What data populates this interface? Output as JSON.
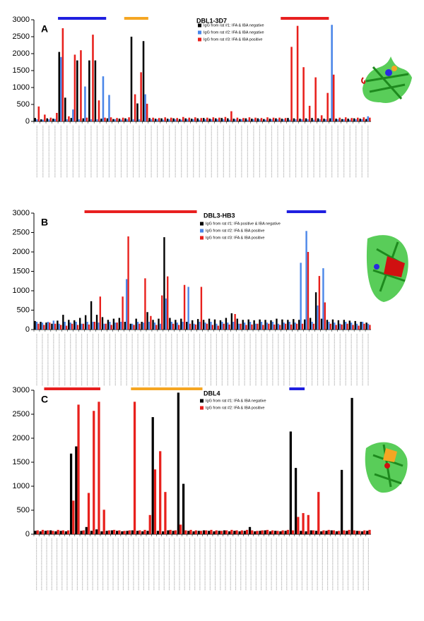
{
  "chart_data": [
    {
      "type": "bar",
      "panel": "A",
      "title": "DBL1-3D7",
      "ylim": [
        0,
        3000
      ],
      "yticks": [
        0,
        500,
        1000,
        1500,
        2000,
        2500,
        3000
      ],
      "highlights": [
        {
          "color": "#1f1fe0",
          "from": 4,
          "to": 11
        },
        {
          "color": "#f5a623",
          "from": 15,
          "to": 18
        },
        {
          "color": "#e82020",
          "from": 41,
          "to": 48
        }
      ],
      "series": [
        {
          "name": "IgG from rat #1: IFA & IBA negative",
          "color": "#000000",
          "values": [
            100,
            60,
            90,
            80,
            2050,
            700,
            100,
            1800,
            90,
            1800,
            1800,
            80,
            90,
            70,
            80,
            90,
            2500,
            530,
            2370,
            100,
            80,
            90,
            80,
            90,
            70,
            90,
            80,
            90,
            100,
            80,
            90,
            100,
            90,
            80,
            70,
            90,
            80,
            90,
            70,
            80,
            90,
            80,
            100,
            90,
            80,
            90,
            100,
            90,
            80,
            90,
            80,
            70,
            80,
            90,
            80,
            70
          ]
        },
        {
          "name": "IgG from rat #2: IFA & IBA negative",
          "color": "#4a86e8",
          "values": [
            60,
            50,
            60,
            70,
            1900,
            60,
            350,
            60,
            1030,
            60,
            60,
            1330,
            780,
            60,
            50,
            60,
            60,
            60,
            800,
            60,
            60,
            50,
            60,
            60,
            50,
            60,
            60,
            50,
            60,
            60,
            60,
            60,
            50,
            60,
            60,
            50,
            60,
            60,
            50,
            60,
            60,
            60,
            50,
            60,
            60,
            60,
            50,
            60,
            60,
            2850,
            60,
            60,
            50,
            60,
            60,
            150
          ]
        },
        {
          "name": "IgG from rat #3: IFA & IBA positive",
          "color": "#e8201c",
          "values": [
            440,
            200,
            110,
            250,
            2750,
            150,
            1970,
            2100,
            110,
            2560,
            620,
            110,
            120,
            100,
            110,
            120,
            800,
            1450,
            520,
            110,
            100,
            120,
            110,
            100,
            130,
            110,
            120,
            100,
            110,
            120,
            110,
            130,
            300,
            110,
            100,
            120,
            110,
            100,
            120,
            110,
            110,
            100,
            2200,
            2820,
            1600,
            460,
            1300,
            180,
            840,
            1380,
            110,
            120,
            100,
            110,
            120,
            110
          ]
        }
      ]
    },
    {
      "type": "bar",
      "panel": "B",
      "title": "DBL3-HB3",
      "ylim": [
        0,
        3000
      ],
      "yticks": [
        0,
        500,
        1000,
        1500,
        2000,
        2500,
        3000
      ],
      "highlights": [
        {
          "color": "#e82020",
          "from": 9,
          "to": 28
        },
        {
          "color": "#1f1fe0",
          "from": 45,
          "to": 51
        }
      ],
      "series": [
        {
          "name": "IgG from rat #1: IFA positive & IBA negative",
          "color": "#000000",
          "values": [
            220,
            200,
            180,
            150,
            230,
            380,
            250,
            240,
            300,
            370,
            730,
            380,
            320,
            250,
            280,
            300,
            200,
            150,
            280,
            200,
            450,
            250,
            280,
            2380,
            300,
            250,
            280,
            200,
            240,
            270,
            250,
            280,
            260,
            240,
            300,
            420,
            280,
            250,
            260,
            240,
            260,
            250,
            240,
            280,
            260,
            250,
            270,
            250,
            260,
            300,
            960,
            280,
            250,
            260,
            240,
            250,
            230,
            220,
            200,
            180
          ]
        },
        {
          "name": "IgG from rat #2: IFA & IBA positive",
          "color": "#4a86e8",
          "values": [
            200,
            180,
            200,
            230,
            150,
            200,
            180,
            200,
            150,
            200,
            200,
            180,
            150,
            200,
            180,
            200,
            1300,
            150,
            200,
            180,
            200,
            180,
            150,
            800,
            200,
            180,
            200,
            1100,
            150,
            200,
            180,
            200,
            150,
            200,
            180,
            200,
            150,
            180,
            200,
            150,
            200,
            180,
            200,
            150,
            180,
            200,
            180,
            1720,
            2540,
            200,
            620,
            1580,
            200,
            180,
            150,
            200,
            180,
            150,
            200,
            150
          ]
        },
        {
          "name": "IgG from rat #3: IFA & IBA positive",
          "color": "#e8201c",
          "values": [
            150,
            120,
            180,
            150,
            120,
            100,
            150,
            120,
            150,
            130,
            200,
            850,
            150,
            120,
            180,
            850,
            2400,
            120,
            150,
            1320,
            350,
            120,
            880,
            1370,
            150,
            120,
            1150,
            150,
            130,
            1100,
            150,
            120,
            100,
            150,
            130,
            400,
            150,
            120,
            130,
            150,
            120,
            150,
            130,
            120,
            150,
            130,
            150,
            150,
            2000,
            150,
            1380,
            700,
            150,
            120,
            130,
            150,
            120,
            100,
            150,
            120
          ]
        }
      ]
    },
    {
      "type": "bar",
      "panel": "C",
      "title": "DBL4",
      "ylim": [
        0,
        3000
      ],
      "yticks": [
        0,
        500,
        1000,
        1500,
        2000,
        2500,
        3000
      ],
      "highlights": [
        {
          "color": "#e82020",
          "from": 2,
          "to": 12
        },
        {
          "color": "#f5a623",
          "from": 19,
          "to": 32
        },
        {
          "color": "#1f1fe0",
          "from": 50,
          "to": 52
        }
      ],
      "series": [
        {
          "name": "IgG from rat #1: IFA & IBA negative",
          "color": "#000000",
          "values": [
            70,
            60,
            70,
            80,
            60,
            70,
            60,
            1680,
            1830,
            70,
            150,
            70,
            100,
            60,
            70,
            80,
            70,
            60,
            70,
            80,
            70,
            60,
            70,
            2440,
            70,
            60,
            80,
            70,
            2950,
            1050,
            70,
            60,
            70,
            80,
            70,
            60,
            70,
            80,
            60,
            70,
            60,
            70,
            150,
            60,
            70,
            80,
            60,
            70,
            60,
            70,
            2140,
            1380,
            70,
            60,
            80,
            70,
            60,
            70,
            80,
            60,
            1340,
            70,
            2840,
            70,
            60,
            70
          ]
        },
        {
          "name": "IgG from rat #2: IFA & IBA positive",
          "color": "#e8201c",
          "values": [
            80,
            90,
            80,
            70,
            90,
            80,
            80,
            700,
            2700,
            80,
            860,
            2570,
            2760,
            510,
            80,
            90,
            80,
            70,
            80,
            2760,
            80,
            90,
            400,
            1350,
            1730,
            880,
            90,
            80,
            200,
            80,
            90,
            80,
            70,
            80,
            90,
            80,
            70,
            80,
            90,
            80,
            80,
            90,
            80,
            70,
            80,
            90,
            80,
            70,
            80,
            90,
            80,
            360,
            440,
            400,
            80,
            880,
            80,
            90,
            80,
            70,
            80,
            90,
            80,
            70,
            80,
            90
          ]
        }
      ]
    }
  ]
}
